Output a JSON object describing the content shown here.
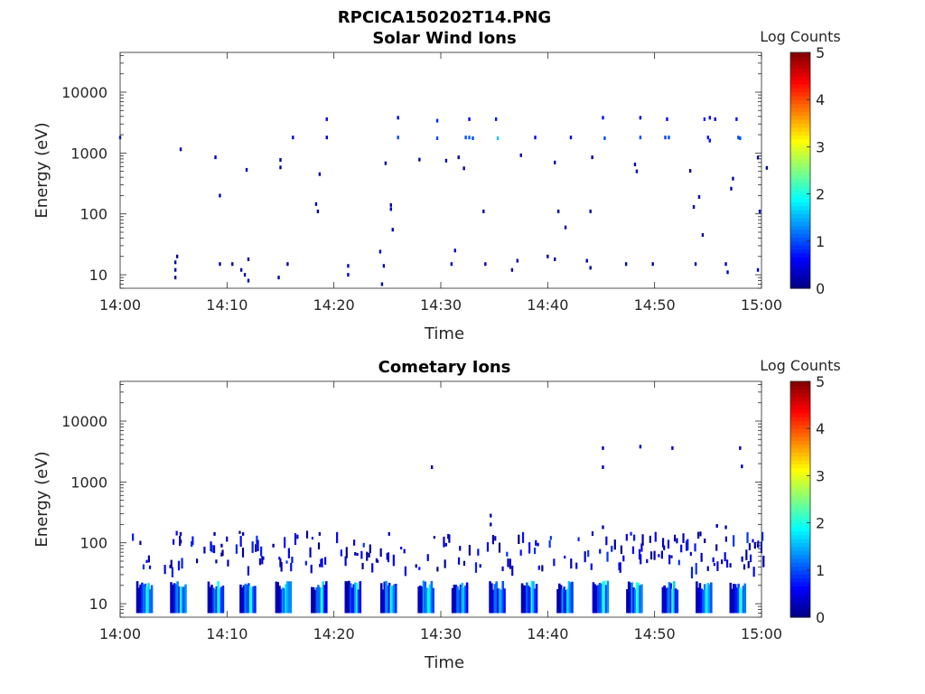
{
  "figure_title": "RPCICA150202T14.PNG",
  "chart_data": [
    {
      "type": "heatmap",
      "title": "Solar Wind Ions",
      "xlabel": "Time",
      "ylabel": "Energy (eV)",
      "x_ticks": [
        "14:00",
        "14:10",
        "14:20",
        "14:30",
        "14:40",
        "14:50",
        "15:00"
      ],
      "y_ticks": [
        "10",
        "100",
        "1000",
        "10000"
      ],
      "y_scale": "log",
      "xlim": [
        "14:00",
        "15:00"
      ],
      "ylim": [
        6,
        45000
      ],
      "colorbar": {
        "label": "Log Counts",
        "ticks": [
          "0",
          "1",
          "2",
          "3",
          "4",
          "5"
        ],
        "range": [
          0,
          5
        ],
        "colormap": "jet"
      },
      "points": [
        [
          "14:00:00",
          1800,
          0.8
        ],
        [
          "14:05:40",
          1150,
          0.3
        ],
        [
          "14:05:10",
          16,
          0.2
        ],
        [
          "14:05:10",
          12,
          0.2
        ],
        [
          "14:05:10",
          9,
          0.1
        ],
        [
          "14:05:20",
          20,
          0.1
        ],
        [
          "14:08:55",
          850,
          0.3
        ],
        [
          "14:09:20",
          200,
          0.3
        ],
        [
          "14:09:20",
          15,
          0.2
        ],
        [
          "14:10:30",
          15,
          0.2
        ],
        [
          "14:11:20",
          12,
          0.2
        ],
        [
          "14:11:40",
          10,
          0.2
        ],
        [
          "14:11:50",
          530,
          0.3
        ],
        [
          "14:12:00",
          18,
          0.2
        ],
        [
          "14:12:00",
          8,
          0.2
        ],
        [
          "14:14:50",
          9,
          0.2
        ],
        [
          "14:15:00",
          770,
          0.2
        ],
        [
          "14:15:00",
          580,
          0.2
        ],
        [
          "14:15:40",
          15,
          0.3
        ],
        [
          "14:16:10",
          1800,
          0.6
        ],
        [
          "14:18:20",
          145,
          0.2
        ],
        [
          "14:18:30",
          110,
          0.2
        ],
        [
          "14:18:40",
          450,
          0.2
        ],
        [
          "14:19:20",
          3600,
          0.6
        ],
        [
          "14:19:20",
          1800,
          0.5
        ],
        [
          "14:21:20",
          14,
          0.3
        ],
        [
          "14:21:20",
          10,
          0.3
        ],
        [
          "14:24:20",
          24,
          0.3
        ],
        [
          "14:24:30",
          7,
          0.2
        ],
        [
          "14:24:40",
          14,
          0.3
        ],
        [
          "14:24:50",
          680,
          0.2
        ],
        [
          "14:25:20",
          140,
          0.2
        ],
        [
          "14:25:20",
          120,
          0.2
        ],
        [
          "14:25:30",
          55,
          0.2
        ],
        [
          "14:26:00",
          3800,
          0.6
        ],
        [
          "14:26:00",
          1800,
          1.0
        ],
        [
          "14:28:00",
          780,
          0.2
        ],
        [
          "14:29:40",
          3400,
          0.8
        ],
        [
          "14:29:40",
          1750,
          1.0
        ],
        [
          "14:30:30",
          750,
          0.2
        ],
        [
          "14:31:00",
          15,
          0.3
        ],
        [
          "14:31:20",
          25,
          0.3
        ],
        [
          "14:31:40",
          850,
          0.2
        ],
        [
          "14:32:10",
          560,
          0.2
        ],
        [
          "14:32:20",
          1800,
          1.0
        ],
        [
          "14:32:40",
          1800,
          1.1
        ],
        [
          "14:33:00",
          1750,
          1.0
        ],
        [
          "14:32:40",
          3600,
          0.6
        ],
        [
          "14:34:00",
          110,
          0.2
        ],
        [
          "14:34:10",
          15,
          0.3
        ],
        [
          "14:35:10",
          3600,
          0.7
        ],
        [
          "14:35:20",
          1750,
          1.6
        ],
        [
          "14:36:40",
          12,
          0.2
        ],
        [
          "14:37:10",
          17,
          0.2
        ],
        [
          "14:37:30",
          920,
          0.2
        ],
        [
          "14:38:50",
          1800,
          0.6
        ],
        [
          "14:40:00",
          20,
          0.2
        ],
        [
          "14:40:40",
          18,
          0.2
        ],
        [
          "14:40:40",
          700,
          0.2
        ],
        [
          "14:41:00",
          110,
          0.2
        ],
        [
          "14:41:40",
          60,
          0.2
        ],
        [
          "14:42:10",
          1800,
          0.6
        ],
        [
          "14:43:40",
          17,
          0.2
        ],
        [
          "14:44:00",
          13,
          0.2
        ],
        [
          "14:44:10",
          850,
          0.2
        ],
        [
          "14:44:00",
          110,
          0.2
        ],
        [
          "14:45:10",
          3800,
          0.7
        ],
        [
          "14:45:20",
          1750,
          1.0
        ],
        [
          "14:47:20",
          15,
          0.2
        ],
        [
          "14:48:10",
          650,
          0.3
        ],
        [
          "14:48:20",
          500,
          0.3
        ],
        [
          "14:48:40",
          1800,
          1.0
        ],
        [
          "14:48:40",
          3800,
          0.5
        ],
        [
          "14:49:50",
          15,
          0.2
        ],
        [
          "14:51:00",
          1800,
          0.9
        ],
        [
          "14:51:10",
          3600,
          0.6
        ],
        [
          "14:51:20",
          1800,
          1.0
        ],
        [
          "14:53:20",
          510,
          0.2
        ],
        [
          "14:53:40",
          130,
          0.2
        ],
        [
          "14:53:50",
          15,
          0.3
        ],
        [
          "14:54:10",
          190,
          0.2
        ],
        [
          "14:54:30",
          45,
          0.2
        ],
        [
          "14:54:40",
          3600,
          0.8
        ],
        [
          "14:55:00",
          1800,
          0.7
        ],
        [
          "14:55:10",
          1600,
          0.7
        ],
        [
          "14:55:10",
          3800,
          0.6
        ],
        [
          "14:55:40",
          3600,
          0.5
        ],
        [
          "14:56:40",
          15,
          0.3
        ],
        [
          "14:56:50",
          11,
          0.3
        ],
        [
          "14:57:10",
          260,
          0.2
        ],
        [
          "14:57:20",
          380,
          0.2
        ],
        [
          "14:57:40",
          3600,
          0.7
        ],
        [
          "14:57:50",
          1800,
          1.0
        ],
        [
          "14:58:00",
          1750,
          1.0
        ],
        [
          "14:59:40",
          840,
          0.2
        ],
        [
          "14:59:40",
          12,
          0.3
        ],
        [
          "14:59:50",
          110,
          0.2
        ],
        [
          "15:00:30",
          570,
          0.2
        ]
      ]
    },
    {
      "type": "heatmap",
      "title": "Cometary Ions",
      "xlabel": "Time",
      "ylabel": "Energy (eV)",
      "x_ticks": [
        "14:00",
        "14:10",
        "14:20",
        "14:30",
        "14:40",
        "14:50",
        "15:00"
      ],
      "y_ticks": [
        "10",
        "100",
        "1000",
        "10000"
      ],
      "y_scale": "log",
      "xlim": [
        "14:00",
        "15:00"
      ],
      "ylim": [
        6,
        45000
      ],
      "colorbar": {
        "label": "Log Counts",
        "ticks": [
          "0",
          "1",
          "2",
          "3",
          "4",
          "5"
        ],
        "range": [
          0,
          5
        ],
        "colormap": "jet"
      },
      "points": [
        [
          "14:29:10",
          1750,
          0.3
        ],
        [
          "14:45:10",
          3600,
          0.3
        ],
        [
          "14:45:10",
          1750,
          0.3
        ],
        [
          "14:48:40",
          3800,
          0.3
        ],
        [
          "14:51:40",
          3600,
          0.3
        ],
        [
          "14:58:00",
          3600,
          0.3
        ],
        [
          "14:58:10",
          1800,
          0.3
        ],
        [
          "14:34:40",
          280,
          0.2
        ],
        [
          "14:34:40",
          200,
          0.2
        ],
        [
          "14:05:40",
          140,
          0.2
        ],
        [
          "14:05:40",
          105,
          0.2
        ],
        [
          "14:08:50",
          140,
          0.2
        ],
        [
          "14:09:30",
          90,
          0.2
        ],
        [
          "14:11:30",
          140,
          0.2
        ],
        [
          "14:14:20",
          90,
          0.2
        ],
        [
          "14:18:40",
          140,
          0.2
        ],
        [
          "14:25:10",
          140,
          0.2
        ],
        [
          "14:45:10",
          180,
          0.2
        ],
        [
          "14:55:50",
          190,
          0.2
        ],
        [
          "14:56:40",
          180,
          0.2
        ],
        [
          "14:59:40",
          90,
          0.2
        ]
      ],
      "band_pulses_start": [
        "14:01:30",
        "14:04:40",
        "14:08:10",
        "14:11:10",
        "14:14:30",
        "14:17:50",
        "14:21:00",
        "14:24:20",
        "14:27:50",
        "14:31:00",
        "14:34:30",
        "14:37:30",
        "14:40:50",
        "14:44:10",
        "14:47:20",
        "14:50:40",
        "14:53:50",
        "14:57:00"
      ],
      "band_energy_range": [
        7,
        24
      ]
    }
  ]
}
